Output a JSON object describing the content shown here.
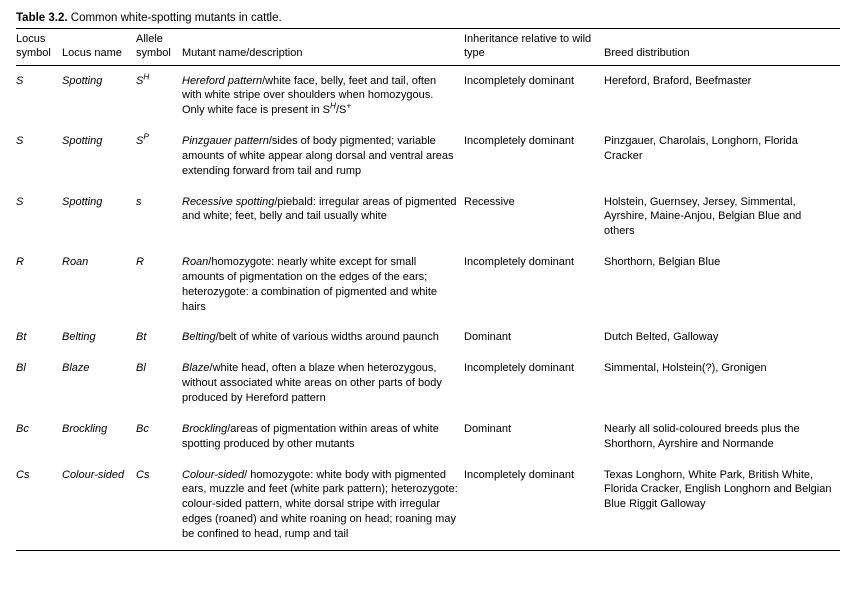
{
  "caption": {
    "label": "Table 3.2.",
    "text": "Common white-spotting mutants in cattle."
  },
  "columns": {
    "locus_symbol": "Locus symbol",
    "locus_name": "Locus name",
    "allele_symbol": "Allele symbol",
    "description": "Mutant name/description",
    "inheritance": "Inheritance relative to wild type",
    "breed": "Breed distribution"
  },
  "rows": [
    {
      "locus_symbol": "S",
      "locus_name": "Spotting",
      "allele_base": "S",
      "allele_sup": "H",
      "mutant_name": "Hereford pattern",
      "desc_rest": "/white face, belly, feet and tail, often with white stripe over shoulders when homozygous. Only white face is present in S",
      "desc_sup_tail": "H/S+",
      "inheritance": "Incompletely dominant",
      "breed": "Hereford, Braford, Beefmaster"
    },
    {
      "locus_symbol": "S",
      "locus_name": "Spotting",
      "allele_base": "S",
      "allele_sup": "P",
      "mutant_name": "Pinzgauer pattern",
      "desc_rest": "/sides of body pigmented; variable amounts of white appear along dorsal and ventral areas extending forward from tail and rump",
      "inheritance": "Incompletely dominant",
      "breed": "Pinzgauer, Charolais, Longhorn, Florida Cracker"
    },
    {
      "locus_symbol": "S",
      "locus_name": "Spotting",
      "allele_base": "s",
      "allele_sup": "",
      "mutant_name": "Recessive spotting",
      "desc_rest": "/piebald: irregular areas of pigmented and white; feet, belly and tail usually white",
      "inheritance": "Recessive",
      "breed": "Holstein, Guernsey, Jersey, Simmental, Ayrshire, Maine-Anjou, Belgian Blue and others"
    },
    {
      "locus_symbol": "R",
      "locus_name": "Roan",
      "allele_base": "R",
      "allele_sup": "",
      "mutant_name": "Roan",
      "desc_rest": "/homozygote: nearly white except for small amounts of pigmentation on the edges of the ears; heterozygote: a combination of pigmented and white hairs",
      "inheritance": "Incompletely dominant",
      "breed": "Shorthorn, Belgian Blue"
    },
    {
      "locus_symbol": "Bt",
      "locus_name": "Belting",
      "allele_base": "Bt",
      "allele_sup": "",
      "mutant_name": "Belting",
      "desc_rest": "/belt of white of various widths around paunch",
      "inheritance": "Dominant",
      "breed": "Dutch Belted, Galloway"
    },
    {
      "locus_symbol": "Bl",
      "locus_name": "Blaze",
      "allele_base": "Bl",
      "allele_sup": "",
      "mutant_name": "Blaze",
      "desc_rest": "/white head, often a blaze when heterozygous, without associated white areas on other parts of body produced by Hereford pattern",
      "inheritance": "Incompletely dominant",
      "breed": "Simmental, Holstein(?), Gronigen"
    },
    {
      "locus_symbol": "Bc",
      "locus_name": "Brockling",
      "allele_base": "Bc",
      "allele_sup": "",
      "mutant_name": "Brockling",
      "desc_rest": "/areas of pigmentation within areas of white spotting produced by other mutants",
      "inheritance": "Dominant",
      "breed": "Nearly all solid-coloured breeds plus the Shorthorn, Ayrshire and Normande"
    },
    {
      "locus_symbol": "Cs",
      "locus_name": "Colour-sided",
      "allele_base": "Cs",
      "allele_sup": "",
      "mutant_name": "Colour-sided",
      "desc_rest": "/ homozygote: white body with pigmented ears, muzzle and feet (white park pattern); heterozygote: colour-sided pattern, white dorsal stripe with irregular edges (roaned) and white roaning on head; roaning may be confined to head, rump and tail",
      "inheritance": "Incompletely dominant",
      "breed": "Texas Longhorn, White Park, British White, Florida Cracker, English Longhorn and Belgian Blue Riggit Galloway"
    }
  ]
}
